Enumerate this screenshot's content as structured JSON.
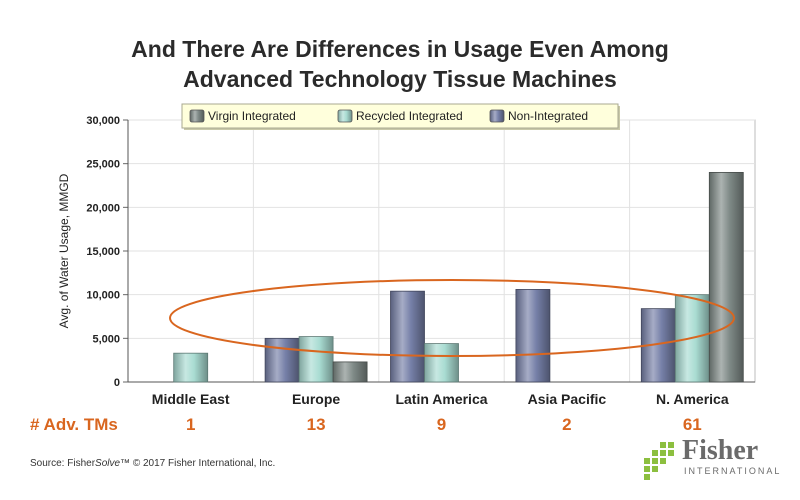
{
  "title": {
    "line1": "And There Are Differences in Usage Even Among",
    "line2": "Advanced Technology Tissue Machines"
  },
  "chart_data": {
    "type": "bar",
    "categories": [
      "Middle East",
      "Europe",
      "Latin America",
      "Asia Pacific",
      "N. America"
    ],
    "series": [
      {
        "name": "Non-Integrated",
        "color": "#7680a8",
        "values": [
          null,
          5000,
          10400,
          10600,
          8400
        ]
      },
      {
        "name": "Recycled Integrated",
        "color": "#a9dcd2",
        "values": [
          3300,
          5200,
          4400,
          null,
          10000
        ]
      },
      {
        "name": "Virgin Integrated",
        "color": "#7f8a87",
        "values": [
          null,
          2300,
          null,
          null,
          24000
        ]
      }
    ],
    "legend_order": [
      "Virgin Integrated",
      "Recycled Integrated",
      "Non-Integrated"
    ],
    "legend_position": "top",
    "ylabel": "Avg. of Water Usage, MMGD",
    "xlabel": "",
    "ylim": [
      0,
      30000
    ],
    "yticks": [
      "0",
      "5,000",
      "10,000",
      "15,000",
      "20,000",
      "25,000",
      "30,000"
    ],
    "grid": true,
    "annotation": "orange ellipse highlighting the 5,000–10,000 range"
  },
  "adv_tms": {
    "label": "# Adv. TMs",
    "values": [
      "1",
      "13",
      "9",
      "2",
      "61"
    ]
  },
  "footer": {
    "source_prefix": "Source: Fisher",
    "source_italic": "Solve",
    "source_suffix": "™ © 2017 Fisher International, Inc.",
    "logo_name": "Fisher",
    "logo_sub": "INTERNATIONAL"
  },
  "colors": {
    "accent": "#d9661f",
    "plot_bg": "#ffffff",
    "grid": "#e2e2e2"
  }
}
